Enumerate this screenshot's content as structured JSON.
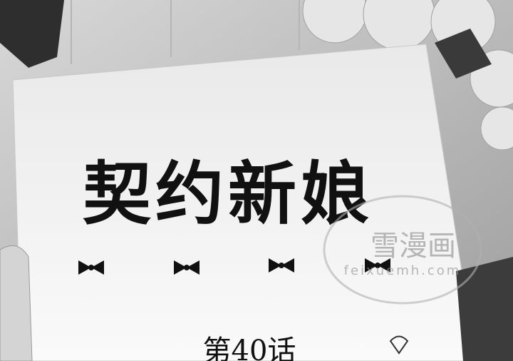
{
  "cover": {
    "title": "契约新娘",
    "chapter": "第40话",
    "watermark": {
      "name": "雪漫画",
      "url": "feixuemh.com"
    }
  }
}
